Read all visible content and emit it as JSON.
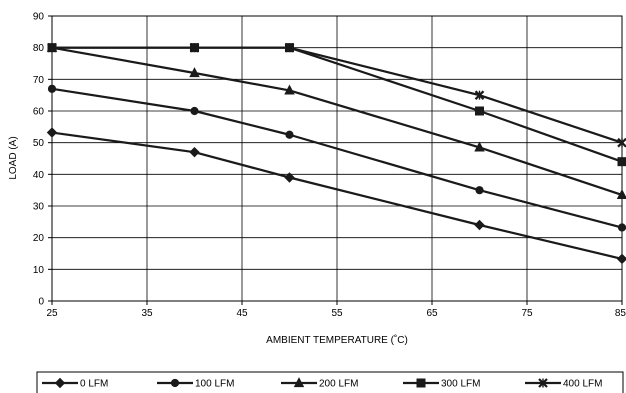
{
  "chart_data": {
    "type": "line",
    "title": "",
    "xlabel": "AMBIENT TEMPERATURE (˚C)",
    "ylabel": "LOAD (A)",
    "xlim": [
      25,
      85
    ],
    "ylim": [
      0,
      90
    ],
    "x_ticks": [
      "25",
      "35",
      "45",
      "55",
      "65",
      "75",
      "85"
    ],
    "y_ticks": [
      "0",
      "10",
      "20",
      "30",
      "40",
      "50",
      "60",
      "70",
      "80",
      "90"
    ],
    "grid": true,
    "legend_position": "bottom",
    "series": [
      {
        "name": "0 LFM",
        "marker": "diamond",
        "color": "#1a1a1a",
        "points": [
          [
            25,
            53.2
          ],
          [
            40,
            47
          ],
          [
            50,
            39
          ],
          [
            70,
            24
          ],
          [
            85,
            13.3
          ]
        ]
      },
      {
        "name": "100 LFM",
        "marker": "circle",
        "color": "#1a1a1a",
        "points": [
          [
            25,
            67
          ],
          [
            40,
            60
          ],
          [
            50,
            52.5
          ],
          [
            70,
            35
          ],
          [
            85,
            23.2
          ]
        ]
      },
      {
        "name": "200 LFM",
        "marker": "triangle",
        "color": "#1a1a1a",
        "points": [
          [
            25,
            80
          ],
          [
            40,
            72
          ],
          [
            50,
            66.5
          ],
          [
            70,
            48.5
          ],
          [
            85,
            33.5
          ]
        ]
      },
      {
        "name": "300 LFM",
        "marker": "square",
        "color": "#1a1a1a",
        "points": [
          [
            25,
            80
          ],
          [
            40,
            80
          ],
          [
            50,
            80
          ],
          [
            70,
            60
          ],
          [
            85,
            44
          ]
        ]
      },
      {
        "name": "400 LFM",
        "marker": "star",
        "color": "#1a1a1a",
        "points": [
          [
            25,
            80
          ],
          [
            40,
            80
          ],
          [
            50,
            80
          ],
          [
            70,
            65
          ],
          [
            85,
            50
          ]
        ]
      }
    ]
  }
}
